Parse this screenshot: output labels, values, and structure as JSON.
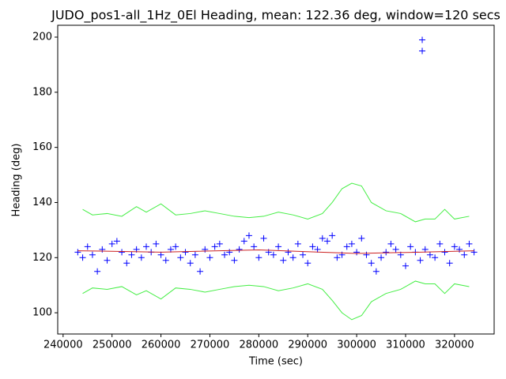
{
  "chart_data": {
    "type": "scatter",
    "title": "JUDO_pos1-all_1Hz_0El Heading, mean: 122.36 deg, window=120 secs",
    "x_label": "Time (sec)",
    "y_label": "Heading (deg)",
    "xlim": [
      238900,
      328100
    ],
    "ylim": [
      92.3,
      204.3
    ],
    "xticks": [
      240000,
      250000,
      260000,
      270000,
      280000,
      290000,
      300000,
      310000,
      320000
    ],
    "yticks": [
      100,
      120,
      140,
      160,
      180,
      200
    ],
    "series": [
      {
        "type": "scatter",
        "color": "#0000ff",
        "x": [
          243000,
          244000,
          245000,
          246000,
          247000,
          248000,
          249000,
          250000,
          251000,
          252000,
          253000,
          254000,
          255000,
          256000,
          257000,
          258000,
          259000,
          260000,
          261000,
          262000,
          263000,
          264000,
          265000,
          266000,
          267000,
          268000,
          269000,
          270000,
          271000,
          272000,
          273000,
          274000,
          275000,
          276000,
          277000,
          278000,
          279000,
          280000,
          281000,
          282000,
          283000,
          284000,
          285000,
          286000,
          287000,
          288000,
          289000,
          290000,
          291000,
          292000,
          293000,
          294000,
          295000,
          296000,
          297000,
          298000,
          299000,
          300000,
          301000,
          302000,
          303000,
          304000,
          305000,
          306000,
          307000,
          308000,
          309000,
          310000,
          311000,
          312000,
          313000,
          314000,
          315000,
          316000,
          317000,
          318000,
          319000,
          320000,
          321000,
          322000,
          323000,
          324000,
          313400,
          313400
        ],
        "values": [
          122,
          120,
          124,
          121,
          115,
          123,
          119,
          125,
          126,
          122,
          118,
          121,
          123,
          120,
          124,
          122,
          125,
          121,
          119,
          123,
          124,
          120,
          122,
          118,
          121,
          115,
          123,
          120,
          124,
          125,
          121,
          122,
          119,
          123,
          126,
          128,
          124,
          120,
          127,
          122,
          121,
          124,
          119,
          122,
          120,
          125,
          121,
          118,
          124,
          123,
          127,
          126,
          128,
          120,
          121,
          124,
          125,
          122,
          127,
          121,
          118,
          115,
          120,
          122,
          125,
          123,
          121,
          117,
          124,
          122,
          119,
          123,
          121,
          120,
          125,
          122,
          118,
          124,
          123,
          121,
          125,
          122,
          199,
          195
        ]
      },
      {
        "type": "line",
        "color": "#44ee44",
        "x": [
          244000,
          246000,
          249000,
          252000,
          255000,
          257000,
          260000,
          263000,
          266000,
          269000,
          272000,
          275000,
          278000,
          281000,
          284000,
          287000,
          290000,
          293000,
          295000,
          297000,
          299000,
          301000,
          303000,
          306000,
          309000,
          312000,
          314000,
          316000,
          318000,
          320000,
          323000
        ],
        "values": [
          137.5,
          135.5,
          136,
          135,
          138.5,
          136.5,
          139.5,
          135.5,
          136,
          137,
          136,
          135,
          134.5,
          135,
          136.5,
          135.5,
          134,
          136,
          140,
          145,
          147,
          146,
          140,
          137,
          136,
          133,
          134,
          134,
          137.5,
          134,
          135
        ]
      },
      {
        "type": "line",
        "color": "#44ee44",
        "x": [
          244000,
          246000,
          249000,
          252000,
          255000,
          257000,
          260000,
          263000,
          266000,
          269000,
          272000,
          275000,
          278000,
          281000,
          284000,
          287000,
          290000,
          293000,
          295000,
          297000,
          299000,
          301000,
          303000,
          306000,
          309000,
          312000,
          314000,
          316000,
          318000,
          320000,
          323000
        ],
        "values": [
          107,
          109,
          108.5,
          109.5,
          106.5,
          108,
          105,
          109,
          108.5,
          107.5,
          108.5,
          109.5,
          110,
          109.5,
          108,
          109,
          110.5,
          108.5,
          104.5,
          100,
          97.5,
          99,
          104,
          107,
          108.5,
          111.5,
          110.5,
          110.5,
          107,
          110.5,
          109.5
        ]
      },
      {
        "type": "line",
        "color": "#cc2222",
        "x": [
          243000,
          260000,
          280000,
          300000,
          313000,
          324000
        ],
        "values": [
          122.5,
          122,
          122.8,
          121.5,
          122,
          122.5
        ]
      }
    ]
  }
}
